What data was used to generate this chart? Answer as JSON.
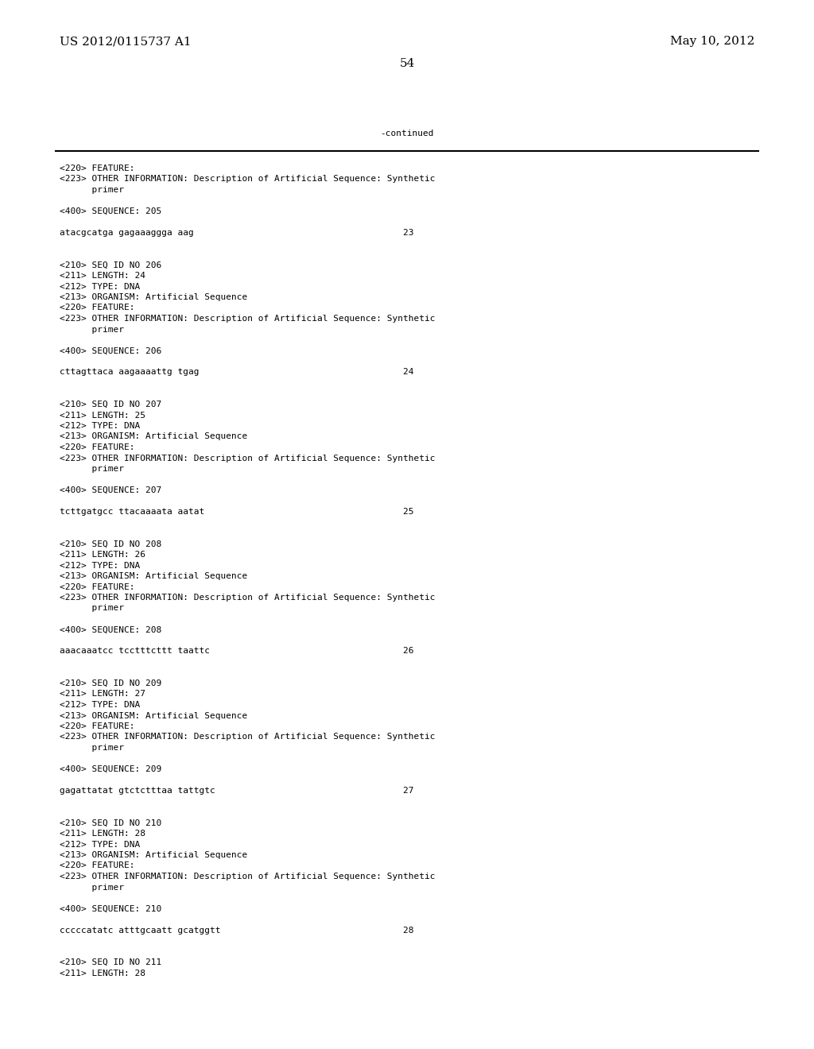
{
  "header_left": "US 2012/0115737 A1",
  "header_right": "May 10, 2012",
  "page_number": "54",
  "continued_text": "-continued",
  "background_color": "#ffffff",
  "text_color": "#000000",
  "font_size_header": 11,
  "font_size_body": 8.0,
  "lines": [
    {
      "text": "<220> FEATURE:"
    },
    {
      "text": "<223> OTHER INFORMATION: Description of Artificial Sequence: Synthetic"
    },
    {
      "text": "      primer"
    },
    {
      "text": ""
    },
    {
      "text": "<400> SEQUENCE: 205"
    },
    {
      "text": ""
    },
    {
      "text": "atacgcatga gagaaaggga aag                                       23"
    },
    {
      "text": ""
    },
    {
      "text": ""
    },
    {
      "text": "<210> SEQ ID NO 206"
    },
    {
      "text": "<211> LENGTH: 24"
    },
    {
      "text": "<212> TYPE: DNA"
    },
    {
      "text": "<213> ORGANISM: Artificial Sequence"
    },
    {
      "text": "<220> FEATURE:"
    },
    {
      "text": "<223> OTHER INFORMATION: Description of Artificial Sequence: Synthetic"
    },
    {
      "text": "      primer"
    },
    {
      "text": ""
    },
    {
      "text": "<400> SEQUENCE: 206"
    },
    {
      "text": ""
    },
    {
      "text": "cttagttaca aagaaaattg tgag                                      24"
    },
    {
      "text": ""
    },
    {
      "text": ""
    },
    {
      "text": "<210> SEQ ID NO 207"
    },
    {
      "text": "<211> LENGTH: 25"
    },
    {
      "text": "<212> TYPE: DNA"
    },
    {
      "text": "<213> ORGANISM: Artificial Sequence"
    },
    {
      "text": "<220> FEATURE:"
    },
    {
      "text": "<223> OTHER INFORMATION: Description of Artificial Sequence: Synthetic"
    },
    {
      "text": "      primer"
    },
    {
      "text": ""
    },
    {
      "text": "<400> SEQUENCE: 207"
    },
    {
      "text": ""
    },
    {
      "text": "tcttgatgcc ttacaaaata aatat                                     25"
    },
    {
      "text": ""
    },
    {
      "text": ""
    },
    {
      "text": "<210> SEQ ID NO 208"
    },
    {
      "text": "<211> LENGTH: 26"
    },
    {
      "text": "<212> TYPE: DNA"
    },
    {
      "text": "<213> ORGANISM: Artificial Sequence"
    },
    {
      "text": "<220> FEATURE:"
    },
    {
      "text": "<223> OTHER INFORMATION: Description of Artificial Sequence: Synthetic"
    },
    {
      "text": "      primer"
    },
    {
      "text": ""
    },
    {
      "text": "<400> SEQUENCE: 208"
    },
    {
      "text": ""
    },
    {
      "text": "aaacaaatcc tcctttcttt taattc                                    26"
    },
    {
      "text": ""
    },
    {
      "text": ""
    },
    {
      "text": "<210> SEQ ID NO 209"
    },
    {
      "text": "<211> LENGTH: 27"
    },
    {
      "text": "<212> TYPE: DNA"
    },
    {
      "text": "<213> ORGANISM: Artificial Sequence"
    },
    {
      "text": "<220> FEATURE:"
    },
    {
      "text": "<223> OTHER INFORMATION: Description of Artificial Sequence: Synthetic"
    },
    {
      "text": "      primer"
    },
    {
      "text": ""
    },
    {
      "text": "<400> SEQUENCE: 209"
    },
    {
      "text": ""
    },
    {
      "text": "gagattatat gtctctttaa tattgtc                                   27"
    },
    {
      "text": ""
    },
    {
      "text": ""
    },
    {
      "text": "<210> SEQ ID NO 210"
    },
    {
      "text": "<211> LENGTH: 28"
    },
    {
      "text": "<212> TYPE: DNA"
    },
    {
      "text": "<213> ORGANISM: Artificial Sequence"
    },
    {
      "text": "<220> FEATURE:"
    },
    {
      "text": "<223> OTHER INFORMATION: Description of Artificial Sequence: Synthetic"
    },
    {
      "text": "      primer"
    },
    {
      "text": ""
    },
    {
      "text": "<400> SEQUENCE: 210"
    },
    {
      "text": ""
    },
    {
      "text": "cccccatatc atttgcaatt gcatggtt                                  28"
    },
    {
      "text": ""
    },
    {
      "text": ""
    },
    {
      "text": "<210> SEQ ID NO 211"
    },
    {
      "text": "<211> LENGTH: 28"
    }
  ]
}
